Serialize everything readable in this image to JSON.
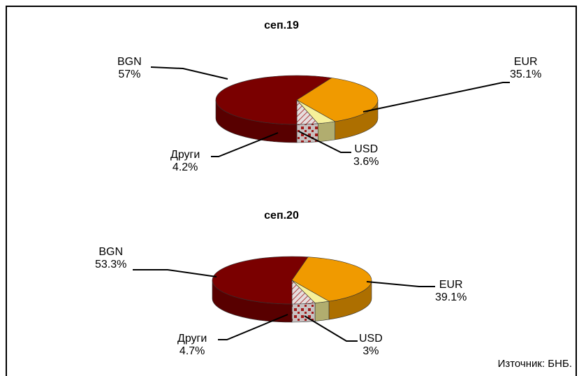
{
  "colors": {
    "BGN": "#7a0000",
    "EUR": "#f09a00",
    "USD": "#f6f09a",
    "Други": "#d9d0d0"
  },
  "chart_data": [
    {
      "type": "pie",
      "title": "сеп.19",
      "slices": [
        {
          "name": "BGN",
          "value": 57,
          "label": "57%"
        },
        {
          "name": "EUR",
          "value": 35.1,
          "label": "35.1%"
        },
        {
          "name": "USD",
          "value": 3.6,
          "label": "3.6%"
        },
        {
          "name": "Други",
          "value": 4.2,
          "label": "4.2%"
        }
      ]
    },
    {
      "type": "pie",
      "title": "сеп.20",
      "slices": [
        {
          "name": "BGN",
          "value": 53.3,
          "label": "53.3%"
        },
        {
          "name": "EUR",
          "value": 39.1,
          "label": "39.1%"
        },
        {
          "name": "USD",
          "value": 3,
          "label": "3%"
        },
        {
          "name": "Други",
          "value": 4.7,
          "label": "4.7%"
        }
      ]
    }
  ],
  "source": "Източник: БНБ."
}
